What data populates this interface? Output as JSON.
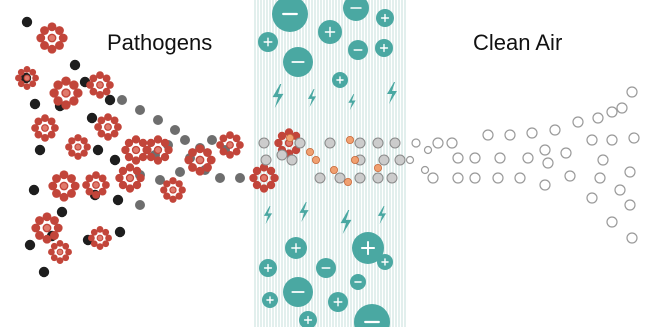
{
  "labels": {
    "left": "Pathogens",
    "right": "Clean Air"
  },
  "colors": {
    "pathogen_dark": "#1e1e1e",
    "pathogen_gray": "#6e6e6e",
    "cluster_red": "#c2453a",
    "cluster_inner": "#e07a6c",
    "filter_stripe": "#cfe4e1",
    "ion_teal": "#4aa8a2",
    "ion_symbol": "#ffffff",
    "clean_outline": "#9a9a9a",
    "orange_fragment": "#f0a070"
  },
  "filter": {
    "description_icons": [
      "lightning-bolt-icon",
      "plus-ion-icon",
      "minus-ion-icon"
    ]
  }
}
